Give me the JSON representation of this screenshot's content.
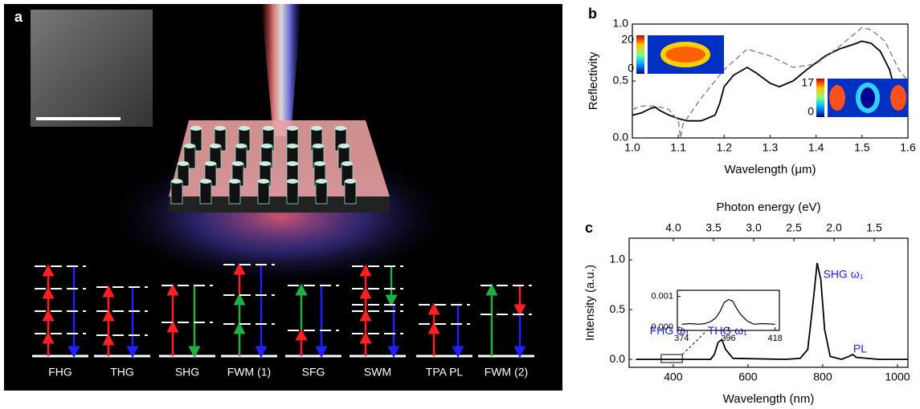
{
  "panel_a": {
    "label": "a",
    "processes": [
      "FHG",
      "THG",
      "SHG",
      "FWM (1)",
      "SFG",
      "SWM",
      "TPA PL",
      "FWM (2)"
    ]
  },
  "chart_data": [
    {
      "type": "line",
      "label": "b",
      "xlabel": "Wavelength (μm)",
      "ylabel": "Reflectivity",
      "xlim": [
        1.0,
        1.6
      ],
      "ylim": [
        0.0,
        1.0
      ],
      "xticks": [
        {
          "value": 1.0,
          "label": "1.0"
        },
        1.1,
        1.2,
        1.3,
        1.4,
        1.5,
        1.6
      ],
      "yticks": [
        {
          "value": 0.0,
          "label": "0.0"
        },
        0.5,
        {
          "value": 1.0,
          "label": "1.0"
        }
      ],
      "series": [
        {
          "color": "#000000",
          "style": "solid",
          "x": [
            1.0,
            1.02,
            1.04,
            1.05,
            1.06,
            1.08,
            1.1,
            1.12,
            1.15,
            1.18,
            1.19,
            1.2,
            1.22,
            1.25,
            1.27,
            1.3,
            1.32,
            1.35,
            1.38,
            1.4,
            1.42,
            1.45,
            1.48,
            1.5,
            1.52,
            1.54,
            1.56,
            1.58,
            1.6
          ],
          "values": [
            0.2,
            0.22,
            0.26,
            0.27,
            0.24,
            0.2,
            0.17,
            0.15,
            0.15,
            0.2,
            0.3,
            0.45,
            0.55,
            0.62,
            0.57,
            0.48,
            0.45,
            0.5,
            0.6,
            0.66,
            0.72,
            0.78,
            0.82,
            0.85,
            0.83,
            0.76,
            0.6,
            0.3,
            0.2
          ]
        },
        {
          "color": "#888888",
          "style": "dashed",
          "x": [
            1.0,
            1.02,
            1.05,
            1.08,
            1.09,
            1.1,
            1.105,
            1.11,
            1.15,
            1.2,
            1.25,
            1.3,
            1.35,
            1.4,
            1.45,
            1.5,
            1.52,
            1.55,
            1.58,
            1.6
          ],
          "values": [
            0.25,
            0.28,
            0.28,
            0.25,
            0.2,
            0.15,
            0.0,
            0.12,
            0.35,
            0.6,
            0.78,
            0.72,
            0.62,
            0.65,
            0.8,
            0.97,
            0.95,
            0.85,
            0.6,
            0.5
          ]
        }
      ],
      "colorbars": [
        {
          "ticks": [
            20,
            0
          ]
        },
        {
          "ticks": [
            17,
            0
          ]
        }
      ]
    },
    {
      "type": "line",
      "label": "c",
      "xlabel": "Wavelength (nm)",
      "ylabel": "Intensity (a.u.)",
      "x2label": "Photon energy (eV)",
      "xlim": [
        282,
        1028
      ],
      "ylim": [
        -0.08,
        1.218
      ],
      "xticks": [
        400,
        600,
        800,
        1000
      ],
      "yticks": [
        {
          "value": 0.0,
          "label": "0.0"
        },
        0.5,
        {
          "value": 1.0,
          "label": "1.0"
        }
      ],
      "x2lim": [
        4.55,
        1.08
      ],
      "x2ticks": [
        {
          "value": 4.0,
          "label": "4.0"
        },
        3.5,
        {
          "value": 3.0,
          "label": "3.0"
        },
        2.5,
        {
          "value": 2.0,
          "label": "2.0"
        },
        1.5
      ],
      "series": [
        {
          "color": "#000000",
          "style": "solid",
          "x": [
            300,
            380,
            500,
            510,
            520,
            530,
            540,
            560,
            700,
            740,
            760,
            775,
            785,
            795,
            805,
            820,
            850,
            870,
            880,
            890,
            950,
            1028
          ],
          "values": [
            0.0,
            0.0,
            0.0,
            0.05,
            0.17,
            0.2,
            0.1,
            0.01,
            0.0,
            0.01,
            0.1,
            0.6,
            0.97,
            0.8,
            0.3,
            0.03,
            0.0,
            0.03,
            0.05,
            0.02,
            0.0,
            0.0
          ]
        }
      ],
      "annotations": [
        {
          "text": "FHG ω₁",
          "x": 390,
          "y": 0.28
        },
        {
          "text": "THG ω₁",
          "x": 545,
          "y": 0.28
        },
        {
          "text": "SHG ω₁",
          "x": 855,
          "y": 0.85
        },
        {
          "text": "PL",
          "x": 900,
          "y": 0.1
        }
      ],
      "inset": {
        "xlim": [
          372,
          420
        ],
        "ylim": [
          -0.0001,
          0.0012
        ],
        "xticks": [
          374,
          396,
          418
        ],
        "yticks": [
          {
            "value": 0.0,
            "label": "0.000"
          },
          {
            "value": 0.001,
            "label": "0.001"
          }
        ],
        "x": [
          374,
          378,
          382,
          385,
          388,
          390,
          392,
          394,
          396,
          398,
          400,
          402,
          405,
          408,
          412,
          418
        ],
        "values": [
          0.0001,
          0.00012,
          0.0001,
          0.00012,
          0.0002,
          0.0003,
          0.0005,
          0.0008,
          0.0009,
          0.00085,
          0.0006,
          0.0004,
          0.0002,
          0.0001,
          0.00012,
          0.0001
        ]
      }
    }
  ]
}
